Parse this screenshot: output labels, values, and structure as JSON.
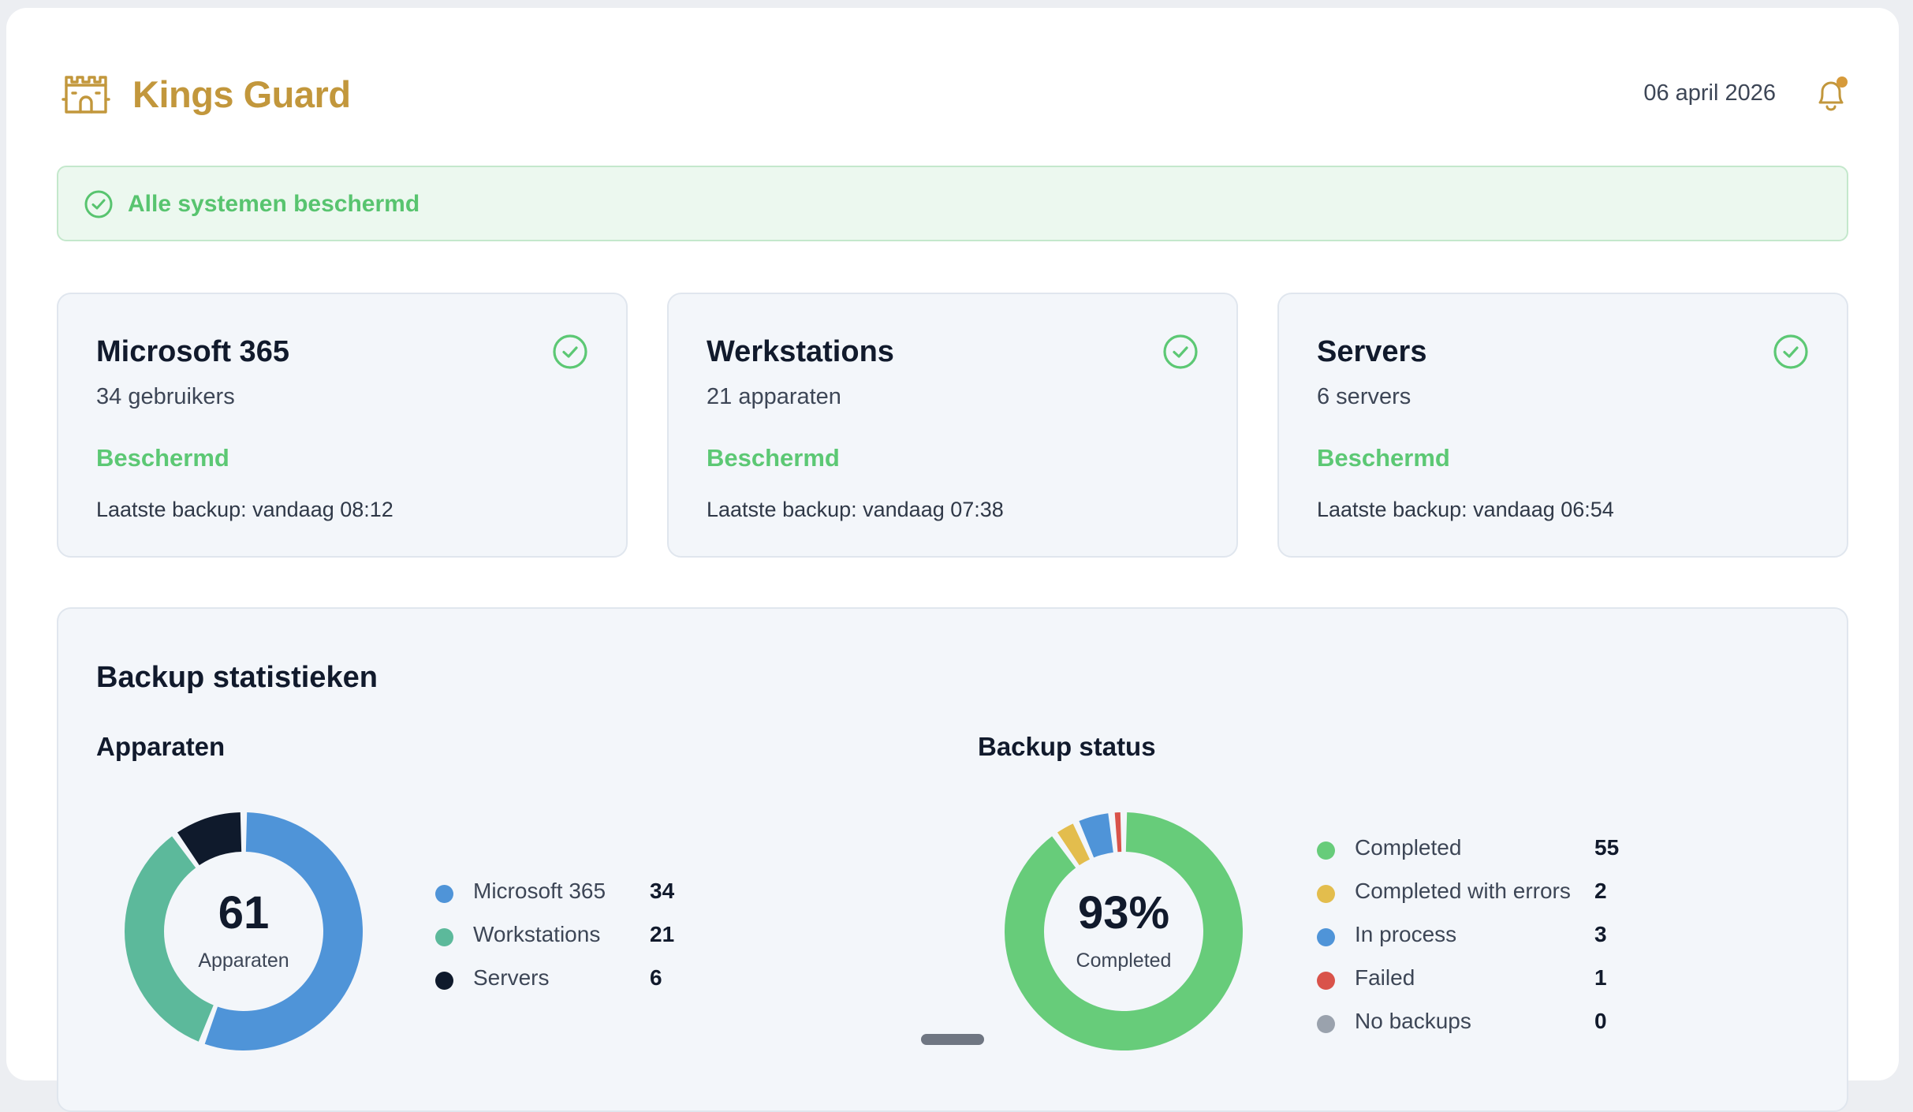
{
  "header": {
    "brand": "Kings Guard",
    "date": "06 april 2026",
    "brand_color": "#c2973c"
  },
  "banner": {
    "text": "Alle systemen beschermd",
    "icon": "check-circle-icon"
  },
  "cards": [
    {
      "title": "Microsoft 365",
      "sub": "34 gebruikers",
      "status": "Beschermd",
      "last_backup": "Laatste backup: vandaag 08:12"
    },
    {
      "title": "Werkstations",
      "sub": "21 apparaten",
      "status": "Beschermd",
      "last_backup": "Laatste backup: vandaag 07:38"
    },
    {
      "title": "Servers",
      "sub": "6 servers",
      "status": "Beschermd",
      "last_backup": "Laatste backup: vandaag 06:54"
    }
  ],
  "stats": {
    "title": "Backup statistieken",
    "devices": {
      "title": "Apparaten",
      "total": "61",
      "total_label": "Apparaten",
      "legend": [
        {
          "label": "Microsoft 365",
          "value": "34",
          "color": "#4f94d8"
        },
        {
          "label": "Workstations",
          "value": "21",
          "color": "#5cb99b"
        },
        {
          "label": "Servers",
          "value": "6",
          "color": "#0f1a2c"
        }
      ]
    },
    "backup": {
      "title": "Backup status",
      "percent": "93%",
      "percent_label": "Completed",
      "legend": [
        {
          "label": "Completed",
          "value": "55",
          "color": "#67cc7a"
        },
        {
          "label": "Completed with errors",
          "value": "2",
          "color": "#e3bd4d"
        },
        {
          "label": "In process",
          "value": "3",
          "color": "#4f94d8"
        },
        {
          "label": "Failed",
          "value": "1",
          "color": "#d9534a"
        },
        {
          "label": "No backups",
          "value": "0",
          "color": "#9aa2ad"
        }
      ]
    }
  },
  "chart_data": [
    {
      "type": "pie",
      "title": "Apparaten",
      "categories": [
        "Microsoft 365",
        "Workstations",
        "Servers"
      ],
      "values": [
        34,
        21,
        6
      ]
    },
    {
      "type": "pie",
      "title": "Backup status",
      "categories": [
        "Completed",
        "Completed with errors",
        "In process",
        "Failed",
        "No backups"
      ],
      "values": [
        55,
        2,
        3,
        1,
        0
      ]
    }
  ]
}
